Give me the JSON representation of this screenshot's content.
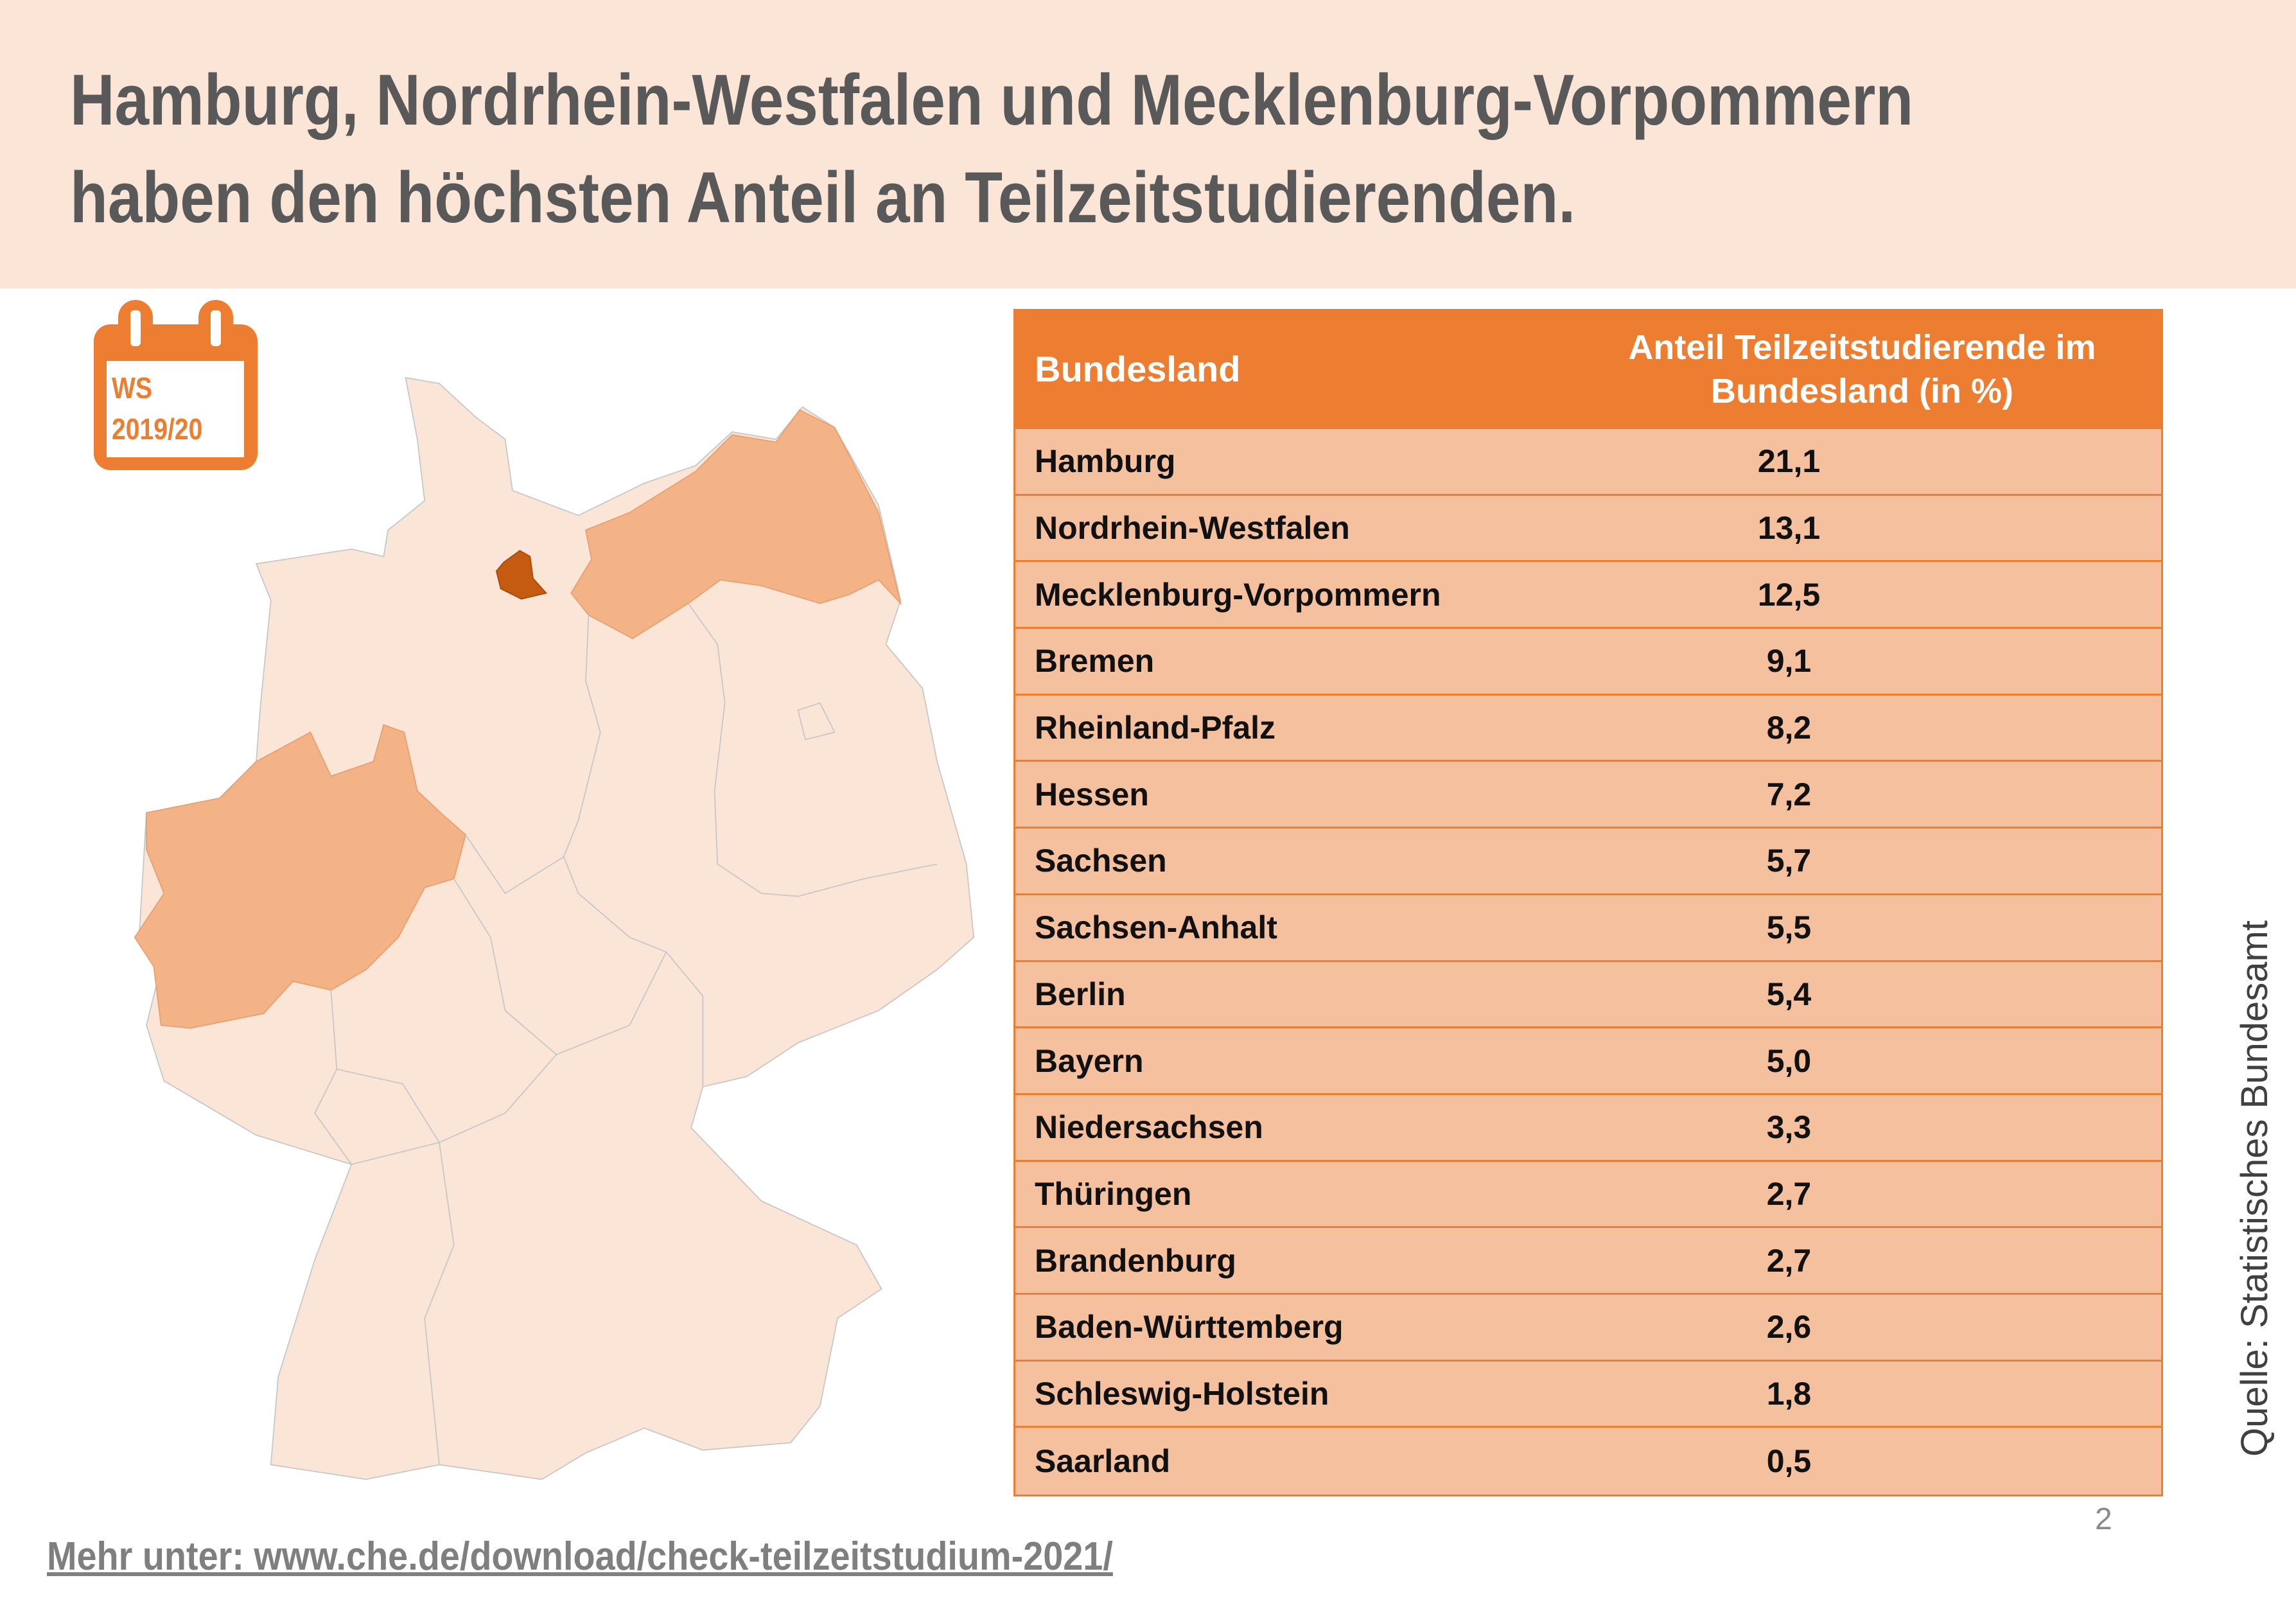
{
  "title": {
    "line1": "Hamburg, Nordrhein-Westfalen und Mecklenburg-Vorpommern",
    "line2": "haben den höchsten Anteil an Teilzeitstudierenden."
  },
  "calendar": {
    "icon": "calendar-icon",
    "line1": "WS",
    "line2": "2019/20"
  },
  "colors": {
    "accent": "#ed7d31",
    "row_fill": "#f5c09d",
    "title_band": "#fae5d7",
    "map_base": "#fae5d7",
    "map_mid": "#f3b387",
    "map_high": "#c55a11"
  },
  "map": {
    "highlighted_high": [
      "Hamburg"
    ],
    "highlighted_mid": [
      "Nordrhein-Westfalen",
      "Mecklenburg-Vorpommern"
    ]
  },
  "table": {
    "headers": [
      "Bundesland",
      "Anteil Teilzeitstudierende im Bundesland (in %)"
    ],
    "rows": [
      [
        "Hamburg",
        "21,1"
      ],
      [
        "Nordrhein-Westfalen",
        "13,1"
      ],
      [
        "Mecklenburg-Vorpommern",
        "12,5"
      ],
      [
        "Bremen",
        "9,1"
      ],
      [
        "Rheinland-Pfalz",
        "8,2"
      ],
      [
        "Hessen",
        "7,2"
      ],
      [
        "Sachsen",
        "5,7"
      ],
      [
        "Sachsen-Anhalt",
        "5,5"
      ],
      [
        "Berlin",
        "5,4"
      ],
      [
        "Bayern",
        "5,0"
      ],
      [
        "Niedersachsen",
        "3,3"
      ],
      [
        "Thüringen",
        "2,7"
      ],
      [
        "Brandenburg",
        "2,7"
      ],
      [
        "Baden-Württemberg",
        "2,6"
      ],
      [
        "Schleswig-Holstein",
        "1,8"
      ],
      [
        "Saarland",
        "0,5"
      ]
    ]
  },
  "source": "Quelle: Statistisches Bundesamt",
  "page_number": "2",
  "link": "Mehr unter: www.che.de/download/check-teilzeitstudium-2021/"
}
